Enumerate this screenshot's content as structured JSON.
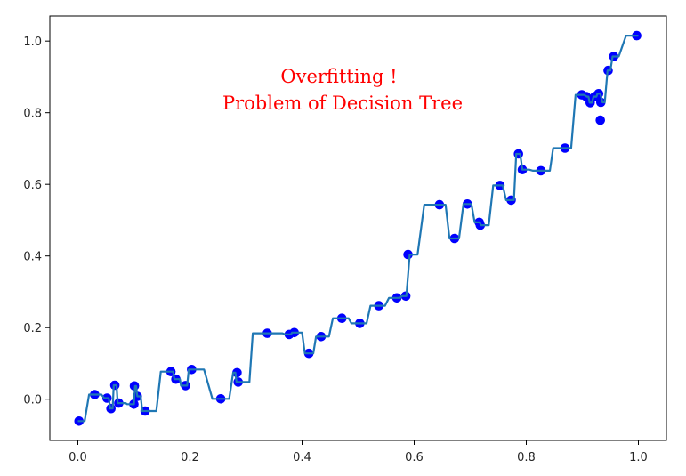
{
  "chart_data": {
    "type": "scatter",
    "title": "",
    "xlabel": "",
    "ylabel": "",
    "xlim": [
      -0.05,
      1.05
    ],
    "ylim": [
      -0.115,
      1.07
    ],
    "xticks": [
      0.0,
      0.2,
      0.4,
      0.6,
      0.8,
      1.0
    ],
    "xtick_labels": [
      "0.0",
      "0.2",
      "0.4",
      "0.6",
      "0.8",
      "1.0"
    ],
    "yticks": [
      0.0,
      0.2,
      0.4,
      0.6,
      0.8,
      1.0
    ],
    "ytick_labels": [
      "0.0",
      "0.2",
      "0.4",
      "0.6",
      "0.8",
      "1.0"
    ],
    "grid": false,
    "annotation": {
      "lines": [
        "Overfitting !",
        "Problem of Decision Tree"
      ],
      "color": "#ff0000"
    },
    "series": [
      {
        "kind": "scatter",
        "color": "#0000ff",
        "points": [
          [
            0.002,
            -0.061
          ],
          [
            0.03,
            0.013
          ],
          [
            0.052,
            0.003
          ],
          [
            0.059,
            -0.026
          ],
          [
            0.066,
            0.039
          ],
          [
            0.073,
            -0.011
          ],
          [
            0.1,
            -0.014
          ],
          [
            0.101,
            0.037
          ],
          [
            0.106,
            0.008
          ],
          [
            0.12,
            -0.033
          ],
          [
            0.166,
            0.077
          ],
          [
            0.175,
            0.056
          ],
          [
            0.192,
            0.038
          ],
          [
            0.203,
            0.083
          ],
          [
            0.255,
            0.001
          ],
          [
            0.284,
            0.074
          ],
          [
            0.286,
            0.048
          ],
          [
            0.338,
            0.184
          ],
          [
            0.377,
            0.181
          ],
          [
            0.386,
            0.186
          ],
          [
            0.412,
            0.128
          ],
          [
            0.434,
            0.175
          ],
          [
            0.471,
            0.226
          ],
          [
            0.503,
            0.212
          ],
          [
            0.537,
            0.261
          ],
          [
            0.569,
            0.283
          ],
          [
            0.585,
            0.288
          ],
          [
            0.589,
            0.404
          ],
          [
            0.645,
            0.543
          ],
          [
            0.672,
            0.449
          ],
          [
            0.695,
            0.545
          ],
          [
            0.716,
            0.494
          ],
          [
            0.718,
            0.486
          ],
          [
            0.753,
            0.597
          ],
          [
            0.773,
            0.556
          ],
          [
            0.786,
            0.685
          ],
          [
            0.793,
            0.641
          ],
          [
            0.826,
            0.638
          ],
          [
            0.869,
            0.701
          ],
          [
            0.899,
            0.85
          ],
          [
            0.907,
            0.845
          ],
          [
            0.914,
            0.828
          ],
          [
            0.922,
            0.845
          ],
          [
            0.929,
            0.853
          ],
          [
            0.932,
            0.779
          ],
          [
            0.933,
            0.829
          ],
          [
            0.946,
            0.918
          ],
          [
            0.956,
            0.957
          ],
          [
            0.997,
            1.015
          ]
        ]
      },
      {
        "kind": "step-line",
        "color": "#1f77b4",
        "points": [
          [
            0.0,
            -0.061
          ],
          [
            0.012,
            -0.061
          ],
          [
            0.02,
            0.013
          ],
          [
            0.042,
            0.013
          ],
          [
            0.047,
            0.003
          ],
          [
            0.055,
            0.003
          ],
          [
            0.058,
            -0.026
          ],
          [
            0.062,
            -0.026
          ],
          [
            0.064,
            0.039
          ],
          [
            0.069,
            0.039
          ],
          [
            0.071,
            -0.011
          ],
          [
            0.085,
            -0.011
          ],
          [
            0.088,
            -0.014
          ],
          [
            0.1,
            -0.014
          ],
          [
            0.102,
            0.037
          ],
          [
            0.104,
            0.037
          ],
          [
            0.106,
            0.008
          ],
          [
            0.112,
            0.008
          ],
          [
            0.115,
            -0.033
          ],
          [
            0.14,
            -0.033
          ],
          [
            0.148,
            0.077
          ],
          [
            0.17,
            0.077
          ],
          [
            0.172,
            0.056
          ],
          [
            0.182,
            0.056
          ],
          [
            0.184,
            0.038
          ],
          [
            0.195,
            0.038
          ],
          [
            0.198,
            0.083
          ],
          [
            0.225,
            0.083
          ],
          [
            0.24,
            0.001
          ],
          [
            0.27,
            0.001
          ],
          [
            0.277,
            0.074
          ],
          [
            0.281,
            0.074
          ],
          [
            0.283,
            0.048
          ],
          [
            0.306,
            0.048
          ],
          [
            0.312,
            0.184
          ],
          [
            0.365,
            0.184
          ],
          [
            0.37,
            0.181
          ],
          [
            0.38,
            0.181
          ],
          [
            0.382,
            0.186
          ],
          [
            0.4,
            0.186
          ],
          [
            0.405,
            0.128
          ],
          [
            0.42,
            0.128
          ],
          [
            0.425,
            0.175
          ],
          [
            0.448,
            0.175
          ],
          [
            0.455,
            0.226
          ],
          [
            0.483,
            0.226
          ],
          [
            0.488,
            0.212
          ],
          [
            0.515,
            0.212
          ],
          [
            0.522,
            0.261
          ],
          [
            0.548,
            0.261
          ],
          [
            0.555,
            0.283
          ],
          [
            0.575,
            0.283
          ],
          [
            0.578,
            0.288
          ],
          [
            0.586,
            0.288
          ],
          [
            0.592,
            0.404
          ],
          [
            0.606,
            0.404
          ],
          [
            0.618,
            0.543
          ],
          [
            0.656,
            0.543
          ],
          [
            0.663,
            0.449
          ],
          [
            0.68,
            0.449
          ],
          [
            0.688,
            0.545
          ],
          [
            0.702,
            0.545
          ],
          [
            0.708,
            0.494
          ],
          [
            0.717,
            0.494
          ],
          [
            0.719,
            0.486
          ],
          [
            0.733,
            0.486
          ],
          [
            0.741,
            0.597
          ],
          [
            0.758,
            0.597
          ],
          [
            0.764,
            0.556
          ],
          [
            0.778,
            0.556
          ],
          [
            0.782,
            0.685
          ],
          [
            0.789,
            0.685
          ],
          [
            0.793,
            0.641
          ],
          [
            0.805,
            0.641
          ],
          [
            0.812,
            0.638
          ],
          [
            0.842,
            0.638
          ],
          [
            0.848,
            0.701
          ],
          [
            0.88,
            0.701
          ],
          [
            0.888,
            0.85
          ],
          [
            0.903,
            0.85
          ],
          [
            0.908,
            0.845
          ],
          [
            0.911,
            0.845
          ],
          [
            0.913,
            0.828
          ],
          [
            0.917,
            0.828
          ],
          [
            0.92,
            0.845
          ],
          [
            0.925,
            0.845
          ],
          [
            0.927,
            0.853
          ],
          [
            0.932,
            0.853
          ],
          [
            0.936,
            0.829
          ],
          [
            0.94,
            0.829
          ],
          [
            0.945,
            0.918
          ],
          [
            0.95,
            0.918
          ],
          [
            0.954,
            0.957
          ],
          [
            0.965,
            0.957
          ],
          [
            0.978,
            1.015
          ],
          [
            1.0,
            1.015
          ]
        ]
      }
    ]
  }
}
